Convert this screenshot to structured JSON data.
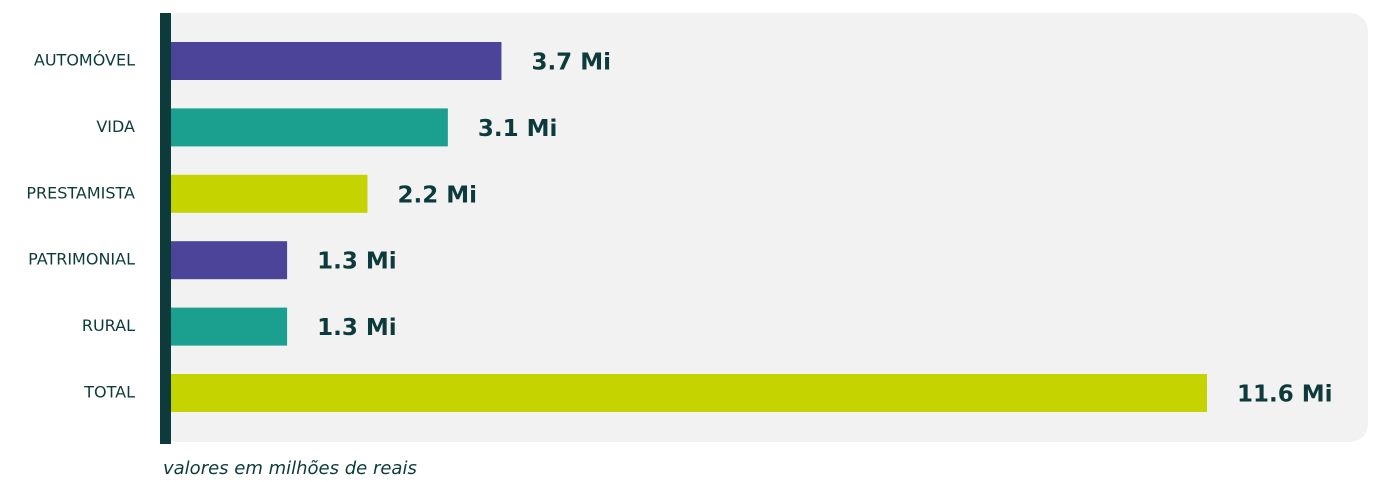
{
  "chart_data": {
    "type": "bar",
    "orientation": "horizontal",
    "categories": [
      "AUTOMÓVEL",
      "VIDA",
      "PRESTAMISTA",
      "PATRIMONIAL",
      "RURAL",
      "TOTAL"
    ],
    "values": [
      3.7,
      3.1,
      2.2,
      1.3,
      1.3,
      11.6
    ],
    "value_labels": [
      "3.7 Mi",
      "3.1 Mi",
      "2.2 Mi",
      "1.3 Mi",
      "1.3 Mi",
      "11.6 Mi"
    ],
    "colors": [
      "#4b4499",
      "#1ba08f",
      "#c5d300",
      "#4b4499",
      "#1ba08f",
      "#c5d300"
    ],
    "note": "valores em milhões de reais"
  }
}
